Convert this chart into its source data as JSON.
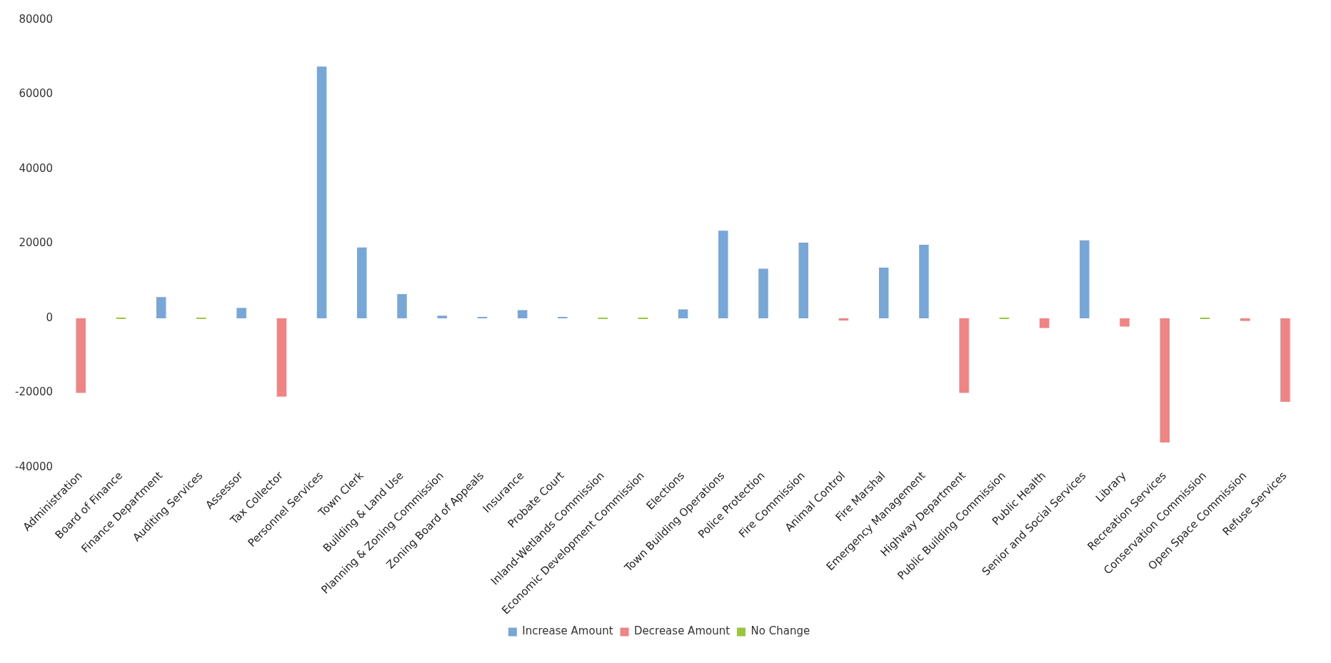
{
  "chart_data": {
    "type": "bar",
    "categories": [
      "Administration",
      "Board of Finance",
      "Finance Department",
      "Auditing Services",
      "Assessor",
      "Tax Collector",
      "Personnel Services",
      "Town Clerk",
      "Building & Land Use",
      "Planning & Zoning Commission",
      "Zoning Board of Appeals",
      "Insurance",
      "Probate Court",
      "Inland-Wetlands Commission",
      "Economic Development Commission",
      "Elections",
      "Town Building Operations",
      "Police Protection",
      "Fire Commission",
      "Animal Control",
      "Fire Marshal",
      "Emergency Management",
      "Highway Department",
      "Public Building Commission",
      "Public Health",
      "Senior and Social Services",
      "Library",
      "Recreation Services",
      "Conservation Commission",
      "Open Space Commission",
      "Refuse Services"
    ],
    "series": [
      {
        "name": "Increase Amount",
        "color": "#78a6d6",
        "values": [
          null,
          null,
          5700,
          null,
          2800,
          null,
          67500,
          19000,
          6500,
          700,
          300,
          2200,
          200,
          null,
          null,
          2400,
          23500,
          13300,
          20300,
          null,
          13600,
          19700,
          null,
          null,
          null,
          20900,
          null,
          null,
          null,
          null,
          null
        ]
      },
      {
        "name": "Decrease Amount",
        "color": "#f08484",
        "values": [
          -20000,
          null,
          null,
          null,
          null,
          -21000,
          null,
          null,
          null,
          null,
          null,
          null,
          null,
          null,
          null,
          null,
          null,
          null,
          null,
          -600,
          null,
          null,
          -20000,
          null,
          -2600,
          null,
          -2200,
          -33300,
          null,
          -700,
          -22400
        ]
      },
      {
        "name": "No Change",
        "color": "#9bc53d",
        "values": [
          null,
          0,
          null,
          0,
          null,
          null,
          null,
          null,
          null,
          null,
          null,
          null,
          null,
          0,
          0,
          null,
          null,
          null,
          null,
          null,
          null,
          null,
          null,
          0,
          null,
          null,
          null,
          null,
          0,
          null,
          null
        ]
      }
    ],
    "ylim": [
      -40000,
      80000
    ],
    "yticks": [
      -40000,
      -20000,
      0,
      20000,
      40000,
      60000,
      80000
    ],
    "grid": false,
    "legend": "bottom"
  }
}
